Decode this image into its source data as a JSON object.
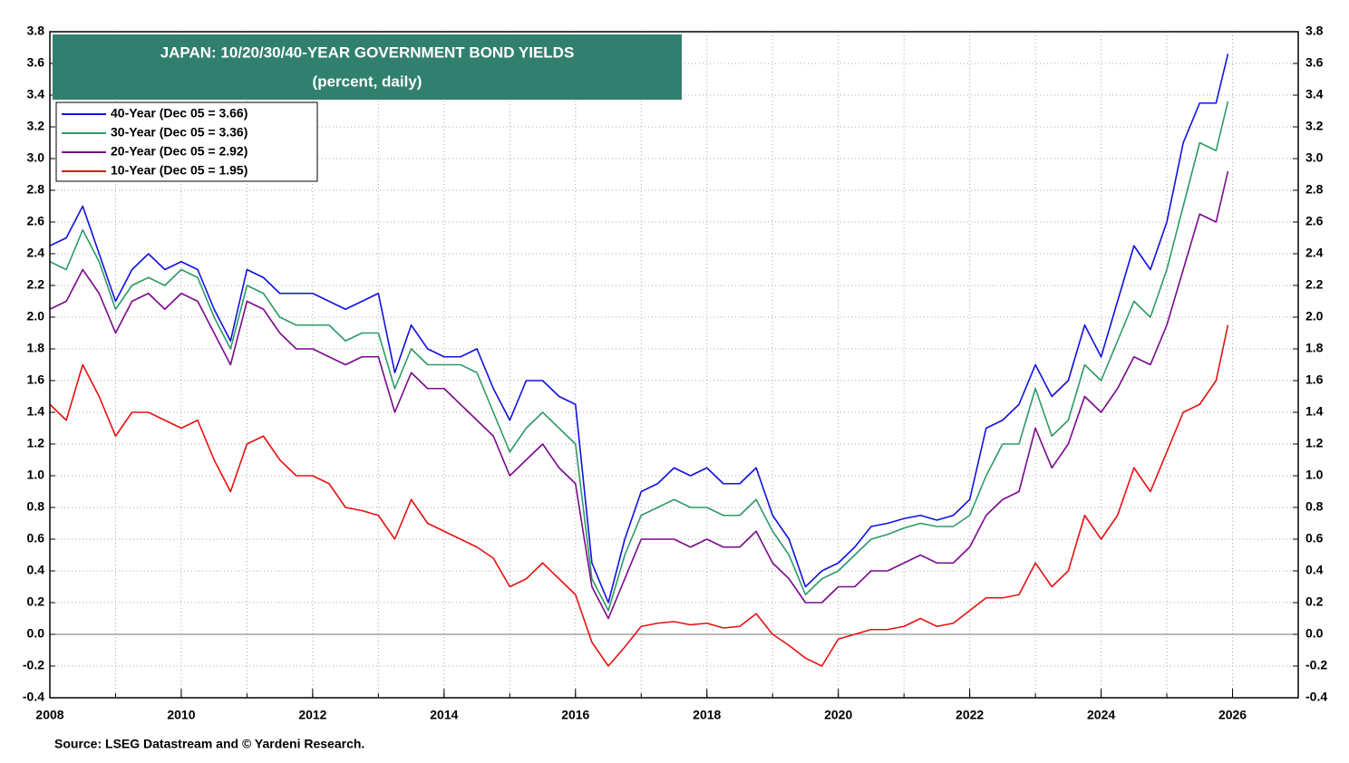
{
  "chart_data": {
    "type": "line",
    "title": "JAPAN: 10/20/30/40-YEAR GOVERNMENT BOND YIELDS",
    "subtitle": "(percent, daily)",
    "source": "Source: LSEG Datastream and © Yardeni Research.",
    "x": [
      2008,
      2008.25,
      2008.5,
      2008.75,
      2009,
      2009.25,
      2009.5,
      2009.75,
      2010,
      2010.25,
      2010.5,
      2010.75,
      2011,
      2011.25,
      2011.5,
      2011.75,
      2012,
      2012.25,
      2012.5,
      2012.75,
      2013,
      2013.25,
      2013.5,
      2013.75,
      2014,
      2014.25,
      2014.5,
      2014.75,
      2015,
      2015.25,
      2015.5,
      2015.75,
      2016,
      2016.25,
      2016.5,
      2016.75,
      2017,
      2017.25,
      2017.5,
      2017.75,
      2018,
      2018.25,
      2018.5,
      2018.75,
      2019,
      2019.25,
      2019.5,
      2019.75,
      2020,
      2020.25,
      2020.5,
      2020.75,
      2021,
      2021.25,
      2021.5,
      2021.75,
      2022,
      2022.25,
      2022.5,
      2022.75,
      2023,
      2023.25,
      2023.5,
      2023.75,
      2024,
      2024.25,
      2024.5,
      2024.75,
      2025,
      2025.25,
      2025.5,
      2025.75,
      2025.93
    ],
    "series": [
      {
        "name": "40-Year (Dec 05 = 3.66)",
        "color": "#1010e0",
        "values": [
          2.45,
          2.5,
          2.7,
          2.4,
          2.1,
          2.3,
          2.4,
          2.3,
          2.35,
          2.3,
          2.05,
          1.85,
          2.3,
          2.25,
          2.15,
          2.15,
          2.15,
          2.1,
          2.05,
          2.1,
          2.15,
          1.65,
          1.95,
          1.8,
          1.75,
          1.75,
          1.8,
          1.55,
          1.35,
          1.6,
          1.6,
          1.5,
          1.45,
          0.45,
          0.2,
          0.6,
          0.9,
          0.95,
          1.05,
          1.0,
          1.05,
          0.95,
          0.95,
          1.05,
          0.75,
          0.6,
          0.3,
          0.4,
          0.45,
          0.55,
          0.68,
          0.7,
          0.73,
          0.75,
          0.72,
          0.75,
          0.85,
          1.3,
          1.35,
          1.45,
          1.7,
          1.5,
          1.6,
          1.95,
          1.75,
          2.1,
          2.45,
          2.3,
          2.6,
          3.1,
          3.35,
          3.35,
          3.66
        ]
      },
      {
        "name": "30-Year (Dec 05 = 3.36)",
        "color": "#2e9a68",
        "values": [
          2.35,
          2.3,
          2.55,
          2.35,
          2.05,
          2.2,
          2.25,
          2.2,
          2.3,
          2.25,
          2.0,
          1.8,
          2.2,
          2.15,
          2.0,
          1.95,
          1.95,
          1.95,
          1.85,
          1.9,
          1.9,
          1.55,
          1.8,
          1.7,
          1.7,
          1.7,
          1.65,
          1.4,
          1.15,
          1.3,
          1.4,
          1.3,
          1.2,
          0.35,
          0.15,
          0.5,
          0.75,
          0.8,
          0.85,
          0.8,
          0.8,
          0.75,
          0.75,
          0.85,
          0.65,
          0.5,
          0.25,
          0.35,
          0.4,
          0.5,
          0.6,
          0.63,
          0.67,
          0.7,
          0.68,
          0.68,
          0.75,
          1.0,
          1.2,
          1.2,
          1.55,
          1.25,
          1.35,
          1.7,
          1.6,
          1.85,
          2.1,
          2.0,
          2.3,
          2.7,
          3.1,
          3.05,
          3.36
        ]
      },
      {
        "name": "20-Year (Dec 05 = 2.92)",
        "color": "#7a0a8c",
        "values": [
          2.05,
          2.1,
          2.3,
          2.15,
          1.9,
          2.1,
          2.15,
          2.05,
          2.15,
          2.1,
          1.9,
          1.7,
          2.1,
          2.05,
          1.9,
          1.8,
          1.8,
          1.75,
          1.7,
          1.75,
          1.75,
          1.4,
          1.65,
          1.55,
          1.55,
          1.45,
          1.35,
          1.25,
          1.0,
          1.1,
          1.2,
          1.05,
          0.95,
          0.3,
          0.1,
          0.35,
          0.6,
          0.6,
          0.6,
          0.55,
          0.6,
          0.55,
          0.55,
          0.65,
          0.45,
          0.35,
          0.2,
          0.2,
          0.3,
          0.3,
          0.4,
          0.4,
          0.45,
          0.5,
          0.45,
          0.45,
          0.55,
          0.75,
          0.85,
          0.9,
          1.3,
          1.05,
          1.2,
          1.5,
          1.4,
          1.55,
          1.75,
          1.7,
          1.95,
          2.3,
          2.65,
          2.6,
          2.92
        ]
      },
      {
        "name": "10-Year (Dec 05 = 1.95)",
        "color": "#e81010",
        "values": [
          1.45,
          1.35,
          1.7,
          1.5,
          1.25,
          1.4,
          1.4,
          1.35,
          1.3,
          1.35,
          1.1,
          0.9,
          1.2,
          1.25,
          1.1,
          1.0,
          1.0,
          0.95,
          0.8,
          0.78,
          0.75,
          0.6,
          0.85,
          0.7,
          0.65,
          0.6,
          0.55,
          0.48,
          0.3,
          0.35,
          0.45,
          0.35,
          0.25,
          -0.05,
          -0.2,
          -0.08,
          0.05,
          0.07,
          0.08,
          0.06,
          0.07,
          0.04,
          0.05,
          0.13,
          0.0,
          -0.07,
          -0.15,
          -0.2,
          -0.03,
          0.0,
          0.03,
          0.03,
          0.05,
          0.1,
          0.05,
          0.07,
          0.15,
          0.23,
          0.23,
          0.25,
          0.45,
          0.3,
          0.4,
          0.75,
          0.6,
          0.75,
          1.05,
          0.9,
          1.15,
          1.4,
          1.45,
          1.6,
          1.95
        ]
      }
    ],
    "xlim": [
      2008,
      2027
    ],
    "xticks": [
      2008,
      2010,
      2012,
      2014,
      2016,
      2018,
      2020,
      2022,
      2024,
      2026
    ],
    "ylim": [
      -0.4,
      3.8
    ],
    "yticks": [
      {
        "value": -0.4,
        "label": "-0.4"
      },
      {
        "value": -0.2,
        "label": "-0.2"
      },
      {
        "value": 0,
        "label": "0.0"
      },
      0.2,
      0.4,
      0.6,
      0.8,
      {
        "value": 1,
        "label": "1.0"
      },
      1.2,
      1.4,
      1.6,
      1.8,
      {
        "value": 2,
        "label": "2.0"
      },
      2.2,
      2.4,
      2.6,
      2.8,
      {
        "value": 3,
        "label": "3.0"
      },
      3.2,
      3.4,
      3.6,
      3.8
    ],
    "grid": true,
    "legend": "top-left",
    "title_box_color": "#31806f"
  }
}
